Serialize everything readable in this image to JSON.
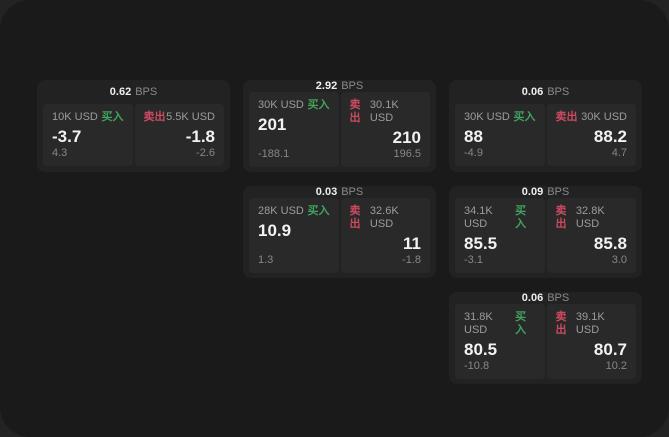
{
  "labels": {
    "bps_unit": "BPS",
    "buy": "买入",
    "sell": "卖出"
  },
  "colors": {
    "page_bg": "#232323",
    "window_bg": "#1a1a1a",
    "card_bg": "#222222",
    "panel_bg": "#292929",
    "buy": "#41a35c",
    "sell": "#cc4a60"
  },
  "cards": [
    {
      "bps": "0.62",
      "buy": {
        "notional": "10K USD",
        "price": "-3.7",
        "sub": "4.3"
      },
      "sell": {
        "notional": "5.5K USD",
        "price": "-1.8",
        "sub": "-2.6"
      }
    },
    {
      "bps": "2.92",
      "buy": {
        "notional": "30K USD",
        "price": "201",
        "sub": "-188.1"
      },
      "sell": {
        "notional": "30.1K USD",
        "price": "210",
        "sub": "196.5"
      }
    },
    {
      "bps": "0.06",
      "buy": {
        "notional": "30K USD",
        "price": "88",
        "sub": "-4.9"
      },
      "sell": {
        "notional": "30K USD",
        "price": "88.2",
        "sub": "4.7"
      }
    },
    {
      "bps": "0.03",
      "buy": {
        "notional": "28K USD",
        "price": "10.9",
        "sub": "1.3"
      },
      "sell": {
        "notional": "32.6K USD",
        "price": "11",
        "sub": "-1.8"
      }
    },
    {
      "bps": "0.09",
      "buy": {
        "notional": "34.1K USD",
        "price": "85.5",
        "sub": "-3.1"
      },
      "sell": {
        "notional": "32.8K USD",
        "price": "85.8",
        "sub": "3.0"
      }
    },
    {
      "bps": "0.06",
      "buy": {
        "notional": "31.8K USD",
        "price": "80.5",
        "sub": "-10.8"
      },
      "sell": {
        "notional": "39.1K USD",
        "price": "80.7",
        "sub": "10.2"
      }
    }
  ]
}
